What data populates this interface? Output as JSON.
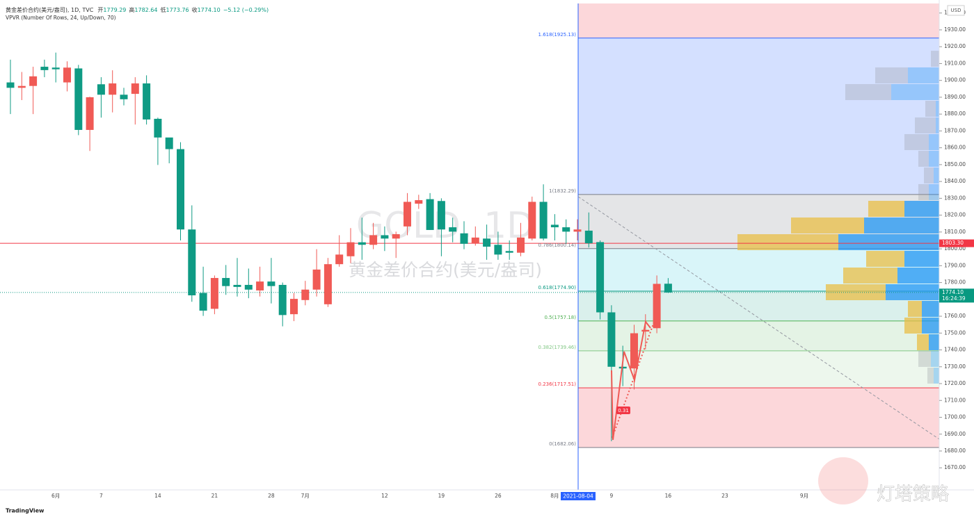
{
  "header": {
    "symbol": "黄金差价合约(美元/盎司), 1D, TVC",
    "ohlc": [
      [
        "开",
        "1779.29"
      ],
      [
        "高",
        "1782.64"
      ],
      [
        "低",
        "1773.76"
      ],
      [
        "收",
        "1774.10"
      ]
    ],
    "change": "−5.12 (−0.29%)",
    "indicator": "VPVR (Number Of Rows, 24, Up/Down, 70)",
    "currency": "USD"
  },
  "watermark": {
    "ticker": "GOLD, 1D",
    "name": "黄金差价合约(美元/盎司)"
  },
  "footer": {
    "brand": "TradingView",
    "stamp": "灯塔策略"
  },
  "chart_data": {
    "type": "candlestick",
    "categories": [
      null,
      null,
      null,
      null,
      "6月",
      null,
      null,
      null,
      "7",
      null,
      null,
      null,
      null,
      "14",
      null,
      null,
      null,
      null,
      "21",
      null,
      null,
      null,
      null,
      "28",
      null,
      null,
      "7月",
      null,
      null,
      null,
      null,
      null,
      null,
      "12",
      null,
      null,
      null,
      null,
      "19",
      null,
      null,
      null,
      null,
      "26",
      null,
      null,
      null,
      null,
      "8月",
      null,
      null,
      null,
      null,
      "9",
      null,
      null,
      null,
      null,
      "16",
      null,
      null,
      null,
      null,
      "23",
      null,
      null,
      null,
      null,
      null,
      null,
      "9月"
    ],
    "open": [
      1898.8,
      1895.6,
      1896.7,
      1908.1,
      1907.6,
      1898.8,
      1907.1,
      1870.6,
      1897.7,
      1891.5,
      1891.5,
      1892,
      1898.2,
      1877.2,
      1866.1,
      1859.2,
      1811.5,
      1773.8,
      1764.4,
      1782.7,
      1778.6,
      1778.6,
      1775.3,
      1780.6,
      1778.6,
      1761.2,
      1769.6,
      1775.8,
      1767.1,
      1790.9,
      1795.6,
      1803.9,
      1802.4,
      1808.1,
      1806.1,
      1813.3,
      1826.8,
      1829.5,
      1828.4,
      1812.8,
      1809.2,
      1803.3,
      1806.1,
      1802.4,
      1798.7,
      1797.7,
      1806.1,
      1827.9,
      1814.3,
      1812.8,
      1810.2,
      1810.8,
      1804,
      1762.3,
      1730,
      1729,
      1750.9,
      1752.9,
      1779.29,
      null,
      null,
      null,
      null,
      null,
      null,
      null,
      null,
      null,
      null,
      null,
      null
    ],
    "high": [
      1912.3,
      1905,
      1908.1,
      1912.3,
      1916.5,
      1911.3,
      1909.2,
      1890.3,
      1901.9,
      1906,
      1895.6,
      1901.9,
      1903,
      1877.9,
      1865.5,
      1863.3,
      1825.8,
      1789.4,
      1784.2,
      1790.4,
      1794.6,
      1788.3,
      1789.4,
      1794.6,
      1780,
      1773.8,
      1781,
      1799.8,
      1794.6,
      1808.1,
      1812.3,
      1818.5,
      1815.4,
      1813.3,
      1810.2,
      1833.1,
      1832.1,
      1833.1,
      1830,
      1818.5,
      1816.4,
      1813.3,
      1814.4,
      1810.2,
      1805,
      1815.4,
      1831,
      1838.3,
      1820.6,
      1817.5,
      1817.5,
      1821.6,
      1805,
      1766.5,
      1742.5,
      1754.9,
      1761.2,
      1784.2,
      1782.64,
      null,
      null,
      null,
      null,
      null,
      null,
      null,
      null,
      null,
      null,
      null,
      null
    ],
    "low": [
      1880,
      1888.3,
      1880,
      1901.9,
      1898.8,
      1893.5,
      1867.5,
      1858.1,
      1877.9,
      1881,
      1885.2,
      1873.8,
      1873.8,
      1849.8,
      1850.8,
      1805,
      1768.6,
      1760.2,
      1761.2,
      1772.7,
      1771.7,
      1770.7,
      1771.7,
      1767.6,
      1754,
      1757.1,
      1766.5,
      1771.7,
      1765.5,
      1789.4,
      1791.5,
      1793.5,
      1799.8,
      1798.7,
      1794.6,
      1808.1,
      1823.7,
      1811.2,
      1795.6,
      1803.9,
      1799.8,
      1801.9,
      1793.5,
      1793.5,
      1793.5,
      1795.6,
      1805,
      1805,
      1805,
      1802.9,
      1805,
      1800.8,
      1758.1,
      1685.8,
      1718.5,
      1716.5,
      1740.4,
      1749.9,
      1773.76,
      null,
      null,
      null,
      null,
      null,
      null,
      null,
      null,
      null,
      null,
      null,
      null
    ],
    "close": [
      1895.6,
      1896.7,
      1902.4,
      1906.1,
      1906.6,
      1907.6,
      1870.6,
      1890,
      1891.5,
      1898.2,
      1888.8,
      1898.2,
      1876.8,
      1866.1,
      1859.2,
      1811.5,
      1772.4,
      1763.3,
      1782.7,
      1777.9,
      1777.4,
      1775.8,
      1780.6,
      1777.9,
      1760.7,
      1770.3,
      1775.8,
      1787.7,
      1790.9,
      1796.6,
      1803.9,
      1802.4,
      1808.1,
      1806.1,
      1808.7,
      1827.9,
      1828.9,
      1811.2,
      1811.5,
      1810.2,
      1803,
      1806.7,
      1801.3,
      1796.6,
      1797.7,
      1806.7,
      1827.9,
      1806.1,
      1812.8,
      1810.2,
      1811.5,
      1803.3,
      1762.3,
      1730,
      1729,
      1749.9,
      1751.9,
      1779.22,
      1774.1,
      null,
      null,
      null,
      null,
      null,
      null,
      null,
      null,
      null,
      null,
      null,
      null
    ],
    "up_color": "#f05a55",
    "down_color": "#0f9b84",
    "ylim": [
      1655,
      1945
    ],
    "yticks": [
      {
        "value": 1670,
        "label": "1670.00"
      },
      {
        "value": 1680,
        "label": "1680.00"
      },
      {
        "value": 1690,
        "label": "1690.00"
      },
      {
        "value": 1700,
        "label": "1700.00"
      },
      {
        "value": 1710,
        "label": "1710.00"
      },
      {
        "value": 1720,
        "label": "1720.00"
      },
      {
        "value": 1730,
        "label": "1730.00"
      },
      {
        "value": 1740,
        "label": "1740.00"
      },
      {
        "value": 1750,
        "label": "1750.00"
      },
      {
        "value": 1760,
        "label": "1760.00"
      },
      {
        "value": 1770,
        "label": "1770.00"
      },
      {
        "value": 1780,
        "label": "1780.00"
      },
      {
        "value": 1790,
        "label": "1790.00"
      },
      {
        "value": 1800,
        "label": "1800.00"
      },
      {
        "value": 1810,
        "label": "1810.00"
      },
      {
        "value": 1820,
        "label": "1820.00"
      },
      {
        "value": 1830,
        "label": "1830.00"
      },
      {
        "value": 1840,
        "label": "1840.00"
      },
      {
        "value": 1850,
        "label": "1850.00"
      },
      {
        "value": 1860,
        "label": "1860.00"
      },
      {
        "value": 1870,
        "label": "1870.00"
      },
      {
        "value": 1880,
        "label": "1880.00"
      },
      {
        "value": 1890,
        "label": "1890.00"
      },
      {
        "value": 1900,
        "label": "1900.00"
      },
      {
        "value": 1910,
        "label": "1910.00"
      },
      {
        "value": 1920,
        "label": "1920.00"
      },
      {
        "value": 1930,
        "label": "1930.00"
      },
      {
        "value": 1940,
        "label": "1940.00"
      }
    ],
    "grid": false,
    "crosshair_date": "2021-08-04",
    "price_tags": [
      {
        "value": 1803.3,
        "label": "1803.30",
        "color": "#f23645",
        "line": "solid"
      },
      {
        "value": 1774.1,
        "label": "1774.10",
        "countdown": "16:24:39",
        "color": "#089981",
        "line": "dotted"
      }
    ],
    "fib": {
      "zone_above": "rgba(242,54,69,0.2)",
      "levels": [
        {
          "value": 1925.13,
          "label": "1.618(1925.13)",
          "color": "#2962ff",
          "zone": "rgba(41,98,255,0.2)"
        },
        {
          "value": 1832.29,
          "label": "1(1832.29)",
          "color": "#787b86",
          "zone": "rgba(120,123,134,0.2)"
        },
        {
          "value": 1800.14,
          "label": "0.786(1800.14)",
          "color": "#787b86",
          "zone": "rgba(0,188,212,0.15)"
        },
        {
          "value": 1774.9,
          "label": "0.618(1774.90)",
          "color": "#089981",
          "zone": "rgba(8,153,129,0.15)"
        },
        {
          "value": 1757.18,
          "label": "0.5(1757.18)",
          "color": "#4caf50",
          "zone": "rgba(76,175,80,0.15)"
        },
        {
          "value": 1739.46,
          "label": "0.382(1739.46)",
          "color": "#81c784",
          "zone": "rgba(76,175,80,0.1)"
        },
        {
          "value": 1717.51,
          "label": "0.236(1717.51)",
          "color": "#f23645",
          "zone": "rgba(242,54,69,0.2)"
        },
        {
          "value": 1682.06,
          "label": "0(1682.06)",
          "color": "#787b86"
        }
      ]
    },
    "annotation": "0.31",
    "volume_profile": {
      "bins": [
        1719.6,
        1729.5,
        1739.4,
        1749.3,
        1759.2,
        1769.1,
        1779,
        1788.9,
        1798.8,
        1808.7,
        1818.6,
        1828.5,
        1838.4,
        1848.3,
        1858.2,
        1868.1,
        1878,
        1887.9,
        1897.8,
        1907.7,
        1917.6
      ],
      "up": [
        8,
        12,
        15,
        25,
        25,
        77,
        60,
        50,
        145,
        108,
        50,
        15,
        8,
        15,
        15,
        5,
        5,
        69,
        45,
        0
      ],
      "down": [
        9,
        18,
        17,
        25,
        20,
        86,
        78,
        55,
        145,
        105,
        52,
        15,
        14,
        15,
        35,
        30,
        15,
        66,
        47,
        12
      ],
      "value_area": [
        1739.4,
        1828.5
      ],
      "up_color": "rgba(33,150,243,0.75)",
      "down_color": "rgba(233,190,70,0.75)",
      "up_color_outside": "rgba(33,150,243,0.35)",
      "down_color_outside": "rgba(150,153,160,0.3)"
    }
  }
}
